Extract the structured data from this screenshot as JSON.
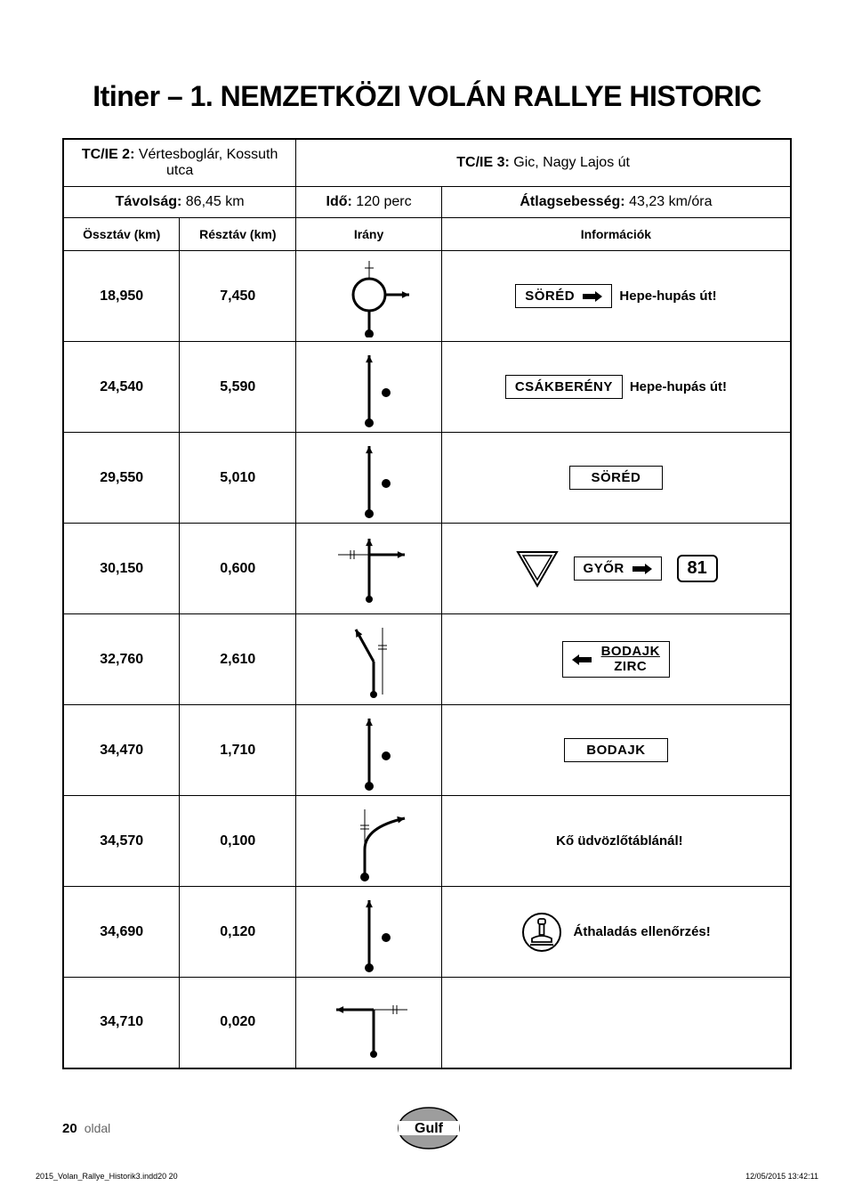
{
  "title": "Itiner – 1. NEMZETKÖZI VOLÁN RALLYE HISTORIC",
  "header": {
    "tc2_label": "TC/IE 2:",
    "tc2_value": "Vértesboglár, Kossuth utca",
    "tc3_label": "TC/IE 3:",
    "tc3_value": "Gic, Nagy Lajos út",
    "dist_label": "Távolság:",
    "dist_value": "86,45 km",
    "time_label": "Idő:",
    "time_value": "120 perc",
    "avg_label": "Átlagsebesség:",
    "avg_value": "43,23 km/óra"
  },
  "columns": {
    "c1": "Össztáv (km)",
    "c2": "Résztáv (km)",
    "c3": "Irány",
    "c4": "Információk"
  },
  "rows": [
    {
      "total": "18,950",
      "part": "7,450",
      "dir": "roundabout-right",
      "info": {
        "type": "sign-arrow-right",
        "sign": "SÖRÉD",
        "note": "Hepe-hupás út!"
      }
    },
    {
      "total": "24,540",
      "part": "5,590",
      "dir": "straight-dot",
      "info": {
        "type": "sign-plain",
        "sign": "CSÁKBERÉNY",
        "note": "Hepe-hupás út!"
      }
    },
    {
      "total": "29,550",
      "part": "5,010",
      "dir": "straight-dot",
      "info": {
        "type": "sign-only",
        "sign": "SÖRÉD"
      }
    },
    {
      "total": "30,150",
      "part": "0,600",
      "dir": "t-right",
      "info": {
        "type": "yield-sign-route",
        "sign": "GYŐR",
        "route": "81"
      }
    },
    {
      "total": "32,760",
      "part": "2,610",
      "dir": "fork-left",
      "info": {
        "type": "left-arrow-sign",
        "sign1": "BODAJK",
        "sign2": "ZIRC"
      }
    },
    {
      "total": "34,470",
      "part": "1,710",
      "dir": "straight-dot",
      "info": {
        "type": "sign-only",
        "sign": "BODAJK"
      }
    },
    {
      "total": "34,570",
      "part": "0,100",
      "dir": "curve-right",
      "info": {
        "type": "text",
        "note": "Kő üdvözlőtáblánál!"
      }
    },
    {
      "total": "34,690",
      "part": "0,120",
      "dir": "straight-dot",
      "info": {
        "type": "stamp",
        "note": "Áthaladás ellenőrzés!"
      }
    },
    {
      "total": "34,710",
      "part": "0,020",
      "dir": "t-left",
      "info": {
        "type": "none"
      }
    }
  ],
  "footer": {
    "page": "20",
    "label": "oldal"
  },
  "meta": {
    "left": "2015_Volan_Rallye_Historik3.indd20   20",
    "right": "12/05/2015   13:42:11"
  },
  "colors": {
    "line": "#000",
    "gulf_fill": "#9d9d9d"
  }
}
